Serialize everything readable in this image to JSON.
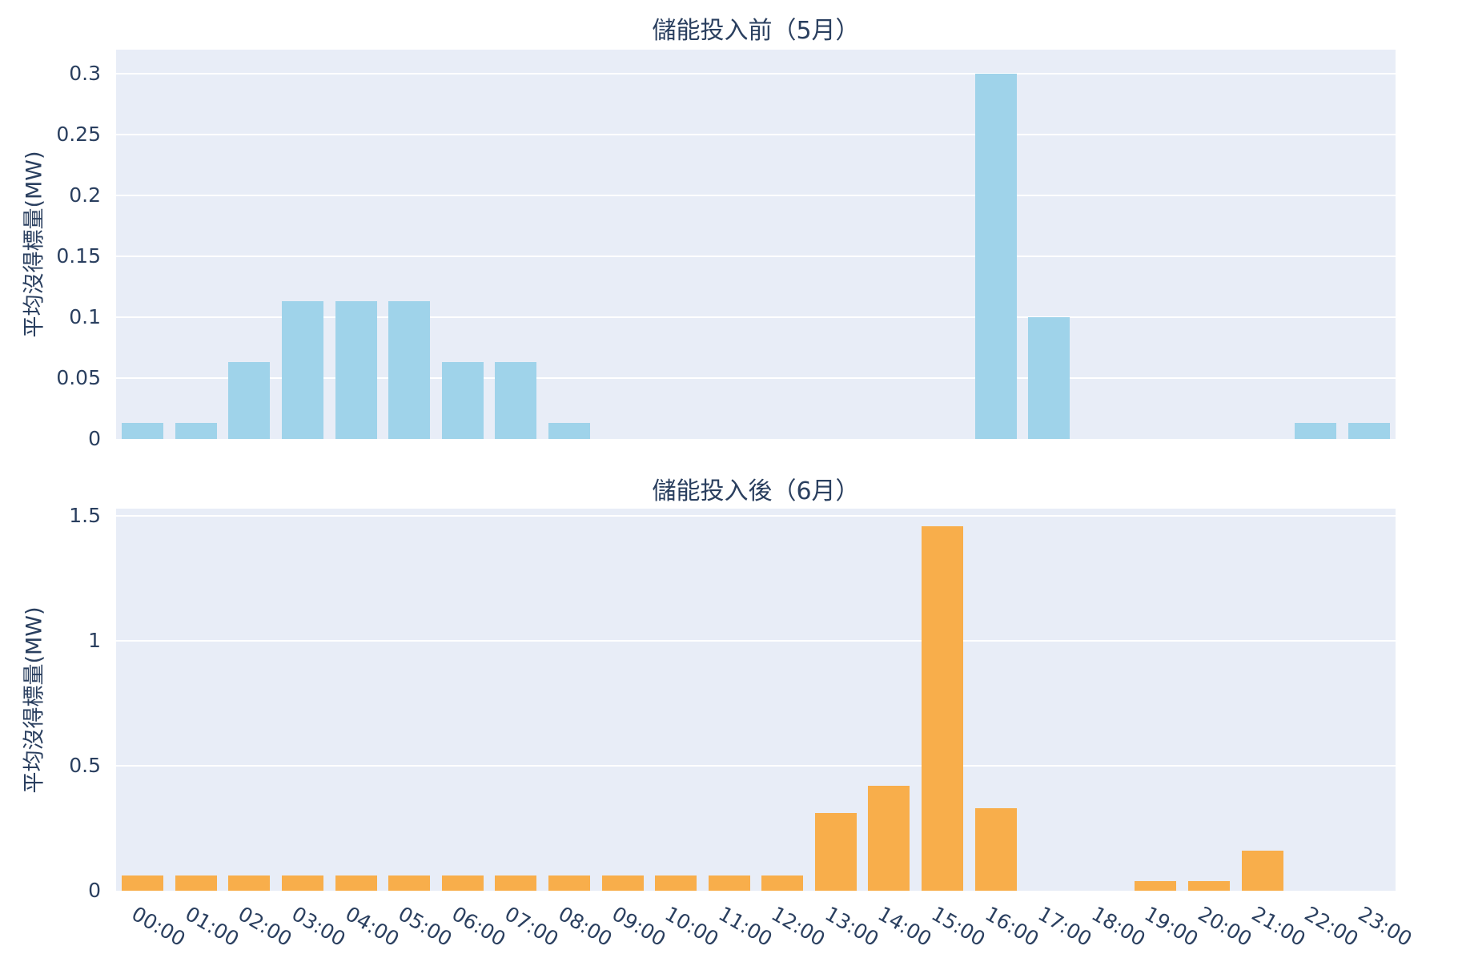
{
  "figure": {
    "background_color": "#ffffff",
    "plot_background_color": "#e8edf7",
    "grid_color": "#ffffff",
    "text_color": "#2a3f5f"
  },
  "chart_data": [
    {
      "type": "bar",
      "title": "儲能投入前（5月）",
      "ylabel": "平均沒得標量(MW)",
      "bar_color": "#9fd3ea",
      "grid": true,
      "legend": "none",
      "x_tick_labels_visible": false,
      "categories": [
        "00:00",
        "01:00",
        "02:00",
        "03:00",
        "04:00",
        "05:00",
        "06:00",
        "07:00",
        "08:00",
        "09:00",
        "10:00",
        "11:00",
        "12:00",
        "13:00",
        "14:00",
        "15:00",
        "16:00",
        "17:00",
        "18:00",
        "19:00",
        "20:00",
        "21:00",
        "22:00",
        "23:00"
      ],
      "values": [
        0.013,
        0.013,
        0.063,
        0.113,
        0.113,
        0.113,
        0.063,
        0.063,
        0.013,
        0,
        0,
        0,
        0,
        0,
        0,
        0,
        0.3,
        0.1,
        0,
        0,
        0,
        0,
        0.013,
        0.013
      ],
      "yticks": [
        0,
        0.05,
        0.1,
        0.15,
        0.2,
        0.25,
        0.3
      ],
      "ytick_labels": [
        "0",
        "0.05",
        "0.1",
        "0.15",
        "0.2",
        "0.25",
        "0.3"
      ],
      "ylim": [
        0,
        0.32
      ]
    },
    {
      "type": "bar",
      "title": "儲能投入後（6月）",
      "ylabel": "平均沒得標量(MW)",
      "bar_color": "#f8ae4b",
      "grid": true,
      "legend": "none",
      "x_tick_labels_visible": true,
      "categories": [
        "00:00",
        "01:00",
        "02:00",
        "03:00",
        "04:00",
        "05:00",
        "06:00",
        "07:00",
        "08:00",
        "09:00",
        "10:00",
        "11:00",
        "12:00",
        "13:00",
        "14:00",
        "15:00",
        "16:00",
        "17:00",
        "18:00",
        "19:00",
        "20:00",
        "21:00",
        "22:00",
        "23:00"
      ],
      "values": [
        0.06,
        0.06,
        0.06,
        0.06,
        0.06,
        0.06,
        0.06,
        0.06,
        0.06,
        0.06,
        0.06,
        0.06,
        0.06,
        0.31,
        0.42,
        1.46,
        0.33,
        0,
        0,
        0.04,
        0.04,
        0.16,
        0,
        0
      ],
      "yticks": [
        0,
        0.5,
        1,
        1.5
      ],
      "ytick_labels": [
        "0",
        "0.5",
        "1",
        "1.5"
      ],
      "ylim": [
        0,
        1.53
      ]
    }
  ]
}
